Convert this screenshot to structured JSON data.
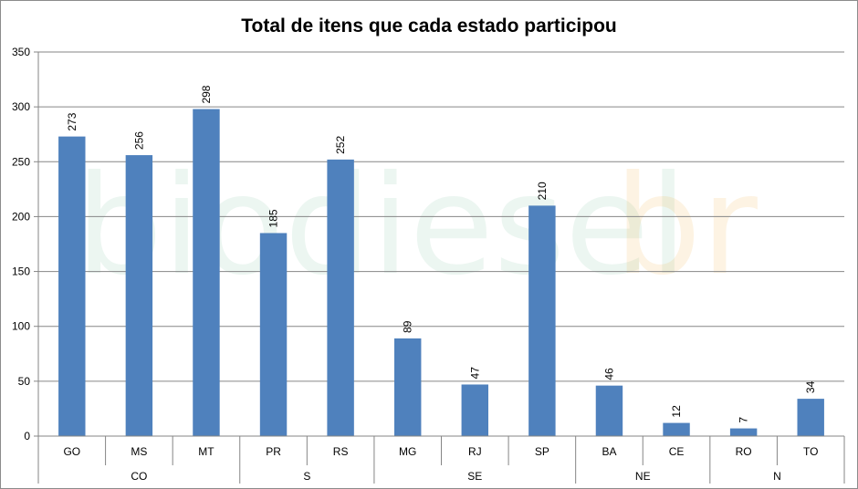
{
  "watermark": {
    "part1": "biodiesel",
    "part2": "br"
  },
  "chart_data": {
    "type": "bar",
    "title": "Total de itens que cada estado participou",
    "categories": [
      "GO",
      "MS",
      "MT",
      "PR",
      "RS",
      "MG",
      "RJ",
      "SP",
      "BA",
      "CE",
      "RO",
      "TO"
    ],
    "values": [
      273,
      256,
      298,
      185,
      252,
      89,
      47,
      210,
      46,
      12,
      7,
      34
    ],
    "groups": [
      {
        "label": "CO",
        "categories": [
          "GO",
          "MS",
          "MT"
        ]
      },
      {
        "label": "S",
        "categories": [
          "PR",
          "RS"
        ]
      },
      {
        "label": "SE",
        "categories": [
          "MG",
          "RJ",
          "SP"
        ]
      },
      {
        "label": "NE",
        "categories": [
          "BA",
          "CE"
        ]
      },
      {
        "label": "N",
        "categories": [
          "RO",
          "TO"
        ]
      }
    ],
    "ylim": [
      0,
      350
    ],
    "yticks": [
      0,
      50,
      100,
      150,
      200,
      250,
      300,
      350
    ],
    "grid": true,
    "legend": "none",
    "bar_color": "#4f81bd"
  }
}
